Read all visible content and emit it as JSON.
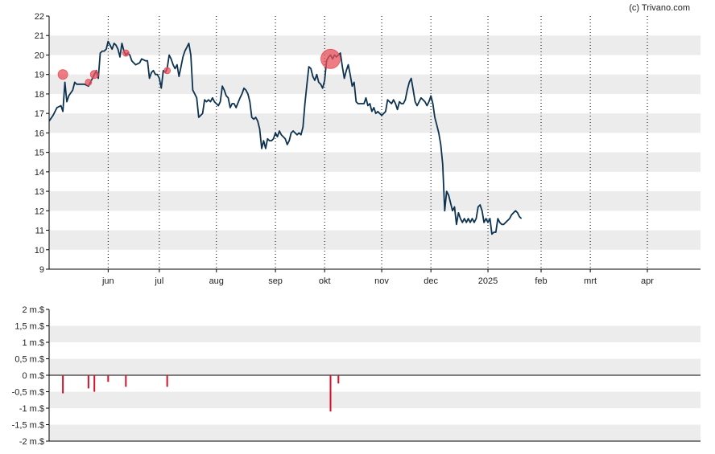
{
  "credit": "(c) Trivano.com",
  "colors": {
    "line": "#0d3350",
    "marker": "#e8505b",
    "bar": "#d8102a",
    "band": "#ececec",
    "axis": "#000000",
    "grid": "#000000"
  },
  "chart_data": [
    {
      "type": "line",
      "title": "",
      "xlabel": "",
      "ylabel": "",
      "ylim": [
        9,
        22
      ],
      "xlim": [
        0,
        331
      ],
      "yticks": [
        "9",
        "10",
        "11",
        "12",
        "13",
        "14",
        "15",
        "16",
        "17",
        "18",
        "19",
        "20",
        "21",
        "22"
      ],
      "xticks": [
        {
          "label": "jun",
          "x": 30
        },
        {
          "label": "jul",
          "x": 56
        },
        {
          "label": "aug",
          "x": 85
        },
        {
          "label": "sep",
          "x": 115
        },
        {
          "label": "okt",
          "x": 140
        },
        {
          "label": "nov",
          "x": 169
        },
        {
          "label": "dec",
          "x": 194
        },
        {
          "label": "2025",
          "x": 223
        },
        {
          "label": "feb",
          "x": 250
        },
        {
          "label": "mrt",
          "x": 275
        },
        {
          "label": "apr",
          "x": 304
        }
      ],
      "grid": "vertical dotted at month ticks, alternating horizontal bands",
      "series": [
        {
          "points": [
            [
              0,
              16.6
            ],
            [
              2,
              16.9
            ],
            [
              4,
              17.3
            ],
            [
              6,
              17.4
            ],
            [
              7,
              17.1
            ],
            [
              8,
              18.6
            ],
            [
              9,
              17.6
            ],
            [
              10,
              17.9
            ],
            [
              12,
              18.2
            ],
            [
              13,
              18.6
            ],
            [
              14,
              18.5
            ],
            [
              16,
              18.5
            ],
            [
              18,
              18.5
            ],
            [
              20,
              18.4
            ],
            [
              21,
              18.6
            ],
            [
              22,
              18.8
            ],
            [
              23,
              19.0
            ],
            [
              24,
              19.2
            ],
            [
              25,
              18.8
            ],
            [
              26,
              20.1
            ],
            [
              27,
              20.2
            ],
            [
              28,
              20.2
            ],
            [
              29,
              20.3
            ],
            [
              30,
              20.7
            ],
            [
              31,
              20.5
            ],
            [
              32,
              20.3
            ],
            [
              33,
              20.6
            ],
            [
              34,
              20.5
            ],
            [
              35,
              20.3
            ],
            [
              36,
              19.9
            ],
            [
              37,
              20.6
            ],
            [
              38,
              20.2
            ],
            [
              39,
              20.0
            ],
            [
              40,
              20.1
            ],
            [
              41,
              20.0
            ],
            [
              42,
              19.7
            ],
            [
              43,
              19.6
            ],
            [
              44,
              19.5
            ],
            [
              46,
              19.6
            ],
            [
              47,
              19.8
            ],
            [
              49,
              19.7
            ],
            [
              50,
              19.7
            ],
            [
              51,
              18.8
            ],
            [
              52,
              19.1
            ],
            [
              53,
              19.2
            ],
            [
              54,
              19.0
            ],
            [
              55,
              19.0
            ],
            [
              56,
              18.8
            ],
            [
              57,
              18.3
            ],
            [
              58,
              19.2
            ],
            [
              59,
              19.1
            ],
            [
              60,
              19.3
            ],
            [
              61,
              20.0
            ],
            [
              62,
              19.8
            ],
            [
              63,
              19.5
            ],
            [
              64,
              19.3
            ],
            [
              65,
              19.5
            ],
            [
              66,
              18.9
            ],
            [
              67,
              19.4
            ],
            [
              68,
              19.9
            ],
            [
              69,
              20.2
            ],
            [
              70,
              20.4
            ],
            [
              71,
              20.6
            ],
            [
              72,
              20.0
            ],
            [
              73,
              18.2
            ],
            [
              74,
              18.0
            ],
            [
              75,
              17.8
            ],
            [
              76,
              16.8
            ],
            [
              77,
              16.9
            ],
            [
              78,
              17.0
            ],
            [
              79,
              17.7
            ],
            [
              80,
              17.6
            ],
            [
              81,
              17.7
            ],
            [
              82,
              17.6
            ],
            [
              83,
              17.8
            ],
            [
              84,
              17.6
            ],
            [
              86,
              17.4
            ],
            [
              87,
              17.6
            ],
            [
              88,
              18.4
            ],
            [
              89,
              18.2
            ],
            [
              90,
              17.9
            ],
            [
              91,
              17.8
            ],
            [
              92,
              17.3
            ],
            [
              93,
              17.5
            ],
            [
              94,
              17.5
            ],
            [
              95,
              17.3
            ],
            [
              97,
              17.8
            ],
            [
              98,
              18.0
            ],
            [
              99,
              18.3
            ],
            [
              100,
              18.2
            ],
            [
              101,
              18.0
            ],
            [
              102,
              17.6
            ],
            [
              103,
              16.8
            ],
            [
              104,
              16.7
            ],
            [
              105,
              16.8
            ],
            [
              106,
              16.6
            ],
            [
              107,
              16.2
            ],
            [
              108,
              15.2
            ],
            [
              109,
              15.6
            ],
            [
              110,
              15.2
            ],
            [
              111,
              15.7
            ],
            [
              112,
              15.6
            ],
            [
              113,
              15.6
            ],
            [
              114,
              15.7
            ],
            [
              115,
              16.0
            ],
            [
              116,
              15.8
            ],
            [
              117,
              16.1
            ],
            [
              118,
              15.9
            ],
            [
              119,
              15.8
            ],
            [
              120,
              15.7
            ],
            [
              121,
              15.4
            ],
            [
              122,
              15.6
            ],
            [
              123,
              16.0
            ],
            [
              124,
              16.1
            ],
            [
              125,
              16.0
            ],
            [
              126,
              15.9
            ],
            [
              127,
              16.0
            ],
            [
              128,
              15.9
            ],
            [
              129,
              16.3
            ],
            [
              130,
              17.5
            ],
            [
              131,
              18.5
            ],
            [
              132,
              19.4
            ],
            [
              133,
              19.3
            ],
            [
              134,
              18.9
            ],
            [
              135,
              18.7
            ],
            [
              136,
              19.0
            ],
            [
              137,
              18.6
            ],
            [
              138,
              18.5
            ],
            [
              139,
              18.3
            ],
            [
              140,
              18.7
            ],
            [
              141,
              19.7
            ],
            [
              142,
              19.9
            ],
            [
              143,
              20.0
            ],
            [
              144,
              19.8
            ],
            [
              145,
              20.0
            ],
            [
              146,
              19.9
            ],
            [
              147,
              20.0
            ],
            [
              148,
              20.1
            ],
            [
              149,
              19.4
            ],
            [
              150,
              18.8
            ],
            [
              151,
              19.2
            ],
            [
              152,
              19.5
            ],
            [
              153,
              19.0
            ],
            [
              154,
              18.4
            ],
            [
              155,
              18.6
            ],
            [
              156,
              17.6
            ],
            [
              157,
              17.5
            ],
            [
              158,
              17.5
            ],
            [
              160,
              17.5
            ],
            [
              161,
              17.8
            ],
            [
              162,
              17.4
            ],
            [
              163,
              17.5
            ],
            [
              164,
              17.1
            ],
            [
              165,
              17.3
            ],
            [
              166,
              17.0
            ],
            [
              167,
              17.1
            ],
            [
              168,
              17.0
            ],
            [
              169,
              16.9
            ],
            [
              170,
              17.0
            ],
            [
              171,
              17.1
            ],
            [
              172,
              17.7
            ],
            [
              173,
              17.6
            ],
            [
              174,
              17.5
            ],
            [
              175,
              17.7
            ],
            [
              176,
              17.5
            ],
            [
              177,
              17.2
            ],
            [
              178,
              17.6
            ],
            [
              179,
              17.5
            ],
            [
              180,
              17.5
            ],
            [
              181,
              17.7
            ],
            [
              182,
              18.2
            ],
            [
              183,
              18.6
            ],
            [
              184,
              18.8
            ],
            [
              185,
              18.2
            ],
            [
              186,
              17.6
            ],
            [
              187,
              17.4
            ],
            [
              188,
              17.6
            ],
            [
              189,
              17.8
            ],
            [
              190,
              17.7
            ],
            [
              191,
              17.6
            ],
            [
              192,
              17.4
            ],
            [
              193,
              17.6
            ],
            [
              194,
              17.9
            ],
            [
              195,
              17.5
            ],
            [
              196,
              16.8
            ],
            [
              197,
              16.4
            ],
            [
              198,
              16.0
            ],
            [
              199,
              15.4
            ],
            [
              200,
              14.4
            ],
            [
              201,
              12.0
            ],
            [
              202,
              13.0
            ],
            [
              203,
              12.8
            ],
            [
              204,
              12.4
            ],
            [
              205,
              12.0
            ],
            [
              206,
              12.2
            ],
            [
              207,
              11.3
            ],
            [
              208,
              11.9
            ],
            [
              209,
              11.6
            ],
            [
              210,
              11.4
            ],
            [
              211,
              11.6
            ],
            [
              212,
              11.4
            ],
            [
              213,
              11.6
            ],
            [
              214,
              11.4
            ],
            [
              215,
              11.6
            ],
            [
              216,
              11.4
            ],
            [
              217,
              11.6
            ],
            [
              218,
              12.2
            ],
            [
              219,
              12.3
            ],
            [
              220,
              12.0
            ],
            [
              221,
              11.4
            ],
            [
              222,
              11.6
            ],
            [
              223,
              11.4
            ],
            [
              224,
              11.6
            ],
            [
              225,
              10.8
            ],
            [
              226,
              10.9
            ],
            [
              227,
              10.9
            ],
            [
              228,
              11.6
            ],
            [
              229,
              11.4
            ],
            [
              230,
              11.3
            ],
            [
              231,
              11.3
            ],
            [
              232,
              11.4
            ],
            [
              233,
              11.5
            ],
            [
              234,
              11.6
            ],
            [
              235,
              11.8
            ],
            [
              236,
              11.9
            ],
            [
              237,
              12.0
            ],
            [
              238,
              11.9
            ],
            [
              239,
              11.7
            ],
            [
              240,
              11.6
            ]
          ]
        }
      ],
      "markers": [
        {
          "x": 7,
          "y": 19.0,
          "r": 6
        },
        {
          "x": 20,
          "y": 18.6,
          "r": 4
        },
        {
          "x": 23,
          "y": 19.0,
          "r": 5
        },
        {
          "x": 39,
          "y": 20.1,
          "r": 4
        },
        {
          "x": 60,
          "y": 19.2,
          "r": 4
        },
        {
          "x": 143,
          "y": 19.8,
          "r": 12
        }
      ]
    },
    {
      "type": "bar",
      "title": "",
      "xlabel": "",
      "ylabel": "",
      "ylim": [
        -2,
        2
      ],
      "yticks": [
        "-2 m.$",
        "-1,5 m.$",
        "-1 m.$",
        "-0,5 m.$",
        "0 m.$",
        "0,5 m.$",
        "1 m.$",
        "1,5 m.$",
        "2 m.$"
      ],
      "bars": [
        {
          "x": 7,
          "value": -0.55
        },
        {
          "x": 20,
          "value": -0.4
        },
        {
          "x": 23,
          "value": -0.5
        },
        {
          "x": 30,
          "value": -0.2
        },
        {
          "x": 39,
          "value": -0.35
        },
        {
          "x": 60,
          "value": -0.35
        },
        {
          "x": 143,
          "value": -1.1
        },
        {
          "x": 147,
          "value": -0.25
        }
      ]
    }
  ]
}
